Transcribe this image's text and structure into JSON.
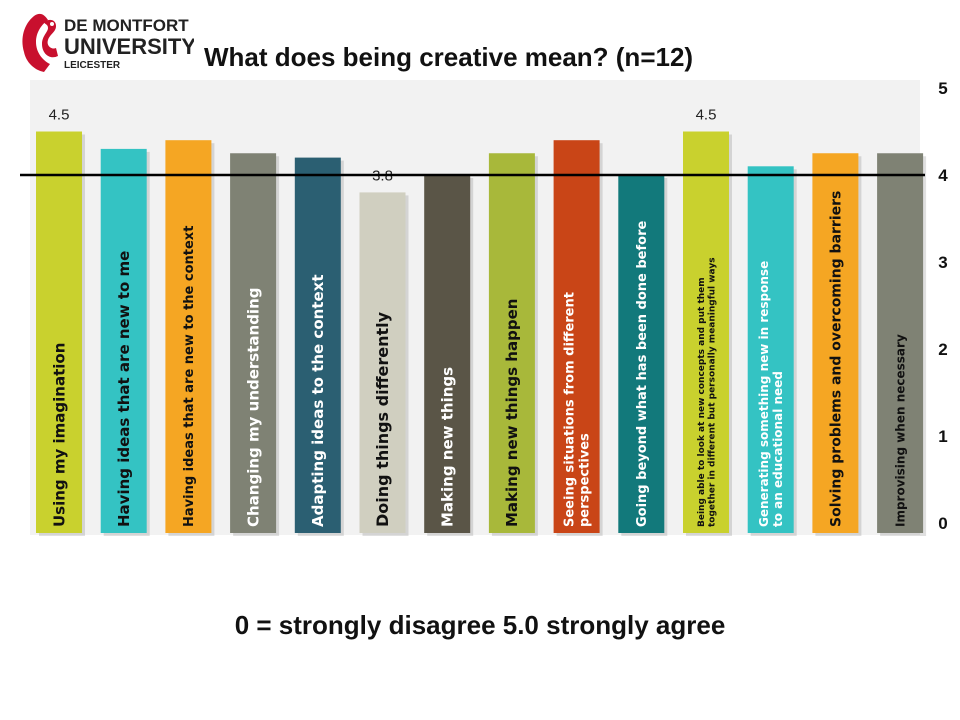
{
  "logo": {
    "line1": "DE MONTFORT",
    "line2": "UNIVERSITY",
    "line3": "LEICESTER",
    "icon": "heraldic-lion-icon",
    "color": "#c8102e"
  },
  "title": "What does being creative mean?  (n=12)",
  "caption": "0 = strongly disagree  5.0 strongly agree",
  "chart_data": {
    "type": "bar",
    "title": "What does being creative mean?  (n=12)",
    "ylim": [
      0,
      5
    ],
    "yticks": [
      "0",
      "1",
      "2",
      "3",
      "4",
      "5"
    ],
    "reference_line": 4,
    "grid": false,
    "categories": [
      [
        "Using my imagination"
      ],
      [
        "Having ideas that are new to me"
      ],
      [
        "Having ideas that are new to the context"
      ],
      [
        "Changing my understanding"
      ],
      [
        "Adapting ideas to the context"
      ],
      [
        "Doing  things differently"
      ],
      [
        "Making new things"
      ],
      [
        "Making new things happen"
      ],
      [
        "Seeing situations  from different",
        "perspectives"
      ],
      [
        "Going beyond what has been done before"
      ],
      [
        "Being able to look at new concepts and put them",
        "together in different but personally meaningful ways"
      ],
      [
        "Generating something new in response",
        "to an educational need"
      ],
      [
        "Solving problems and overcoming barriers"
      ],
      [
        "Improvising when necessary"
      ]
    ],
    "values": [
      4.5,
      4.3,
      4.4,
      4.25,
      4.2,
      3.8,
      4.0,
      4.25,
      4.4,
      4.0,
      4.5,
      4.1,
      4.25,
      4.25
    ],
    "data_labels": [
      "4.5",
      "",
      "",
      "",
      "",
      "3.8",
      "",
      "",
      "",
      "",
      "4.5",
      "",
      "",
      ""
    ],
    "colors": [
      "#c9d12e",
      "#34c3c3",
      "#f5a623",
      "#7f8274",
      "#2b5f72",
      "#d0cfc0",
      "#5a5547",
      "#a8b83a",
      "#c94517",
      "#12797b",
      "#c9d12e",
      "#34c3c3",
      "#f5a623",
      "#7f8274"
    ],
    "label_colors": [
      "#111111",
      "#111111",
      "#111111",
      "#ffffff",
      "#ffffff",
      "#111111",
      "#ffffff",
      "#111111",
      "#ffffff",
      "#ffffff",
      "#111111",
      "#ffffff",
      "#111111",
      "#111111"
    ],
    "label_sizes": [
      15,
      15,
      13,
      15,
      15,
      16,
      15,
      15,
      13,
      13,
      9,
      12,
      14,
      12
    ]
  }
}
